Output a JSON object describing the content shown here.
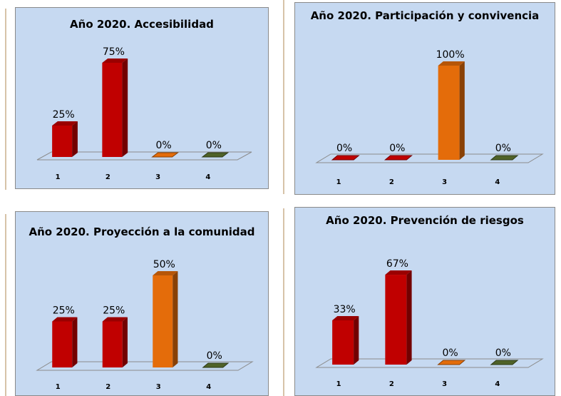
{
  "chart_data": [
    {
      "type": "bar",
      "title": "Año 2020. Accesibilidad",
      "categories": [
        "1",
        "2",
        "3",
        "4"
      ],
      "values": [
        25,
        75,
        0,
        0
      ],
      "value_labels": [
        "25%",
        "75%",
        "0%",
        "0%"
      ],
      "bar_colors": [
        "#c00000",
        "#c00000",
        "#e46c0a",
        "#4f6228"
      ],
      "ylim": [
        0,
        100
      ],
      "grid": false,
      "style": "3d-column"
    },
    {
      "type": "bar",
      "title": "Año 2020. Participación y convivencia",
      "categories": [
        "1",
        "2",
        "3",
        "4"
      ],
      "values": [
        0,
        0,
        100,
        0
      ],
      "value_labels": [
        "0%",
        "0%",
        "100%",
        "0%"
      ],
      "bar_colors": [
        "#c00000",
        "#c00000",
        "#e46c0a",
        "#4f6228"
      ],
      "ylim": [
        0,
        100
      ],
      "grid": false,
      "style": "3d-column"
    },
    {
      "type": "bar",
      "title": "Año 2020. Proyección a la comunidad",
      "categories": [
        "1",
        "2",
        "3",
        "4"
      ],
      "values": [
        25,
        25,
        50,
        0
      ],
      "value_labels": [
        "25%",
        "25%",
        "50%",
        "0%"
      ],
      "bar_colors": [
        "#c00000",
        "#c00000",
        "#e46c0a",
        "#4f6228"
      ],
      "ylim": [
        0,
        100
      ],
      "grid": false,
      "style": "3d-column"
    },
    {
      "type": "bar",
      "title": "Año 2020. Prevención de riesgos",
      "categories": [
        "1",
        "2",
        "3",
        "4"
      ],
      "values": [
        33,
        67,
        0,
        0
      ],
      "value_labels": [
        "33%",
        "67%",
        "0%",
        "0%"
      ],
      "bar_colors": [
        "#c00000",
        "#c00000",
        "#e46c0a",
        "#4f6228"
      ],
      "ylim": [
        0,
        100
      ],
      "grid": false,
      "style": "3d-column"
    }
  ]
}
